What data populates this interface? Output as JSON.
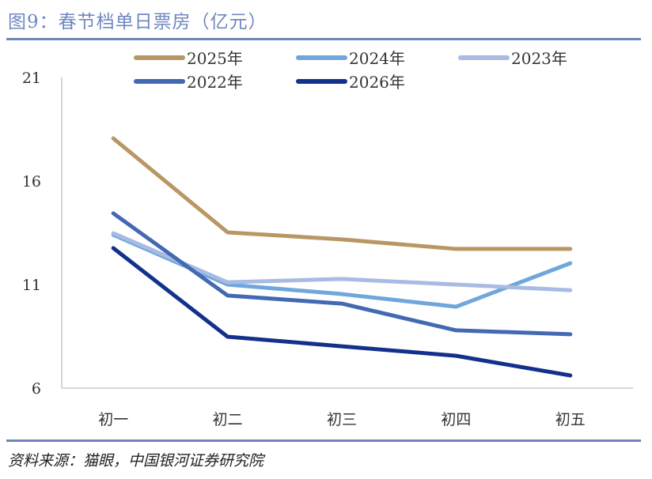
{
  "title": "图9：春节档单日票房（亿元）",
  "source": "资料来源：猫眼，中国银河证券研究院",
  "chart_data": {
    "type": "line",
    "title": "图9：春节档单日票房（亿元）",
    "xlabel": "",
    "ylabel": "",
    "categories": [
      "初一",
      "初二",
      "初三",
      "初四",
      "初五"
    ],
    "yticks": [
      6,
      11,
      16,
      21
    ],
    "ylim": [
      6,
      21
    ],
    "grid": false,
    "legend": "top",
    "series": [
      {
        "name": "2025年",
        "color": "#b99764",
        "values": [
          18.06,
          13.52,
          13.18,
          12.72,
          12.72
        ]
      },
      {
        "name": "2024年",
        "color": "#6fa7dc",
        "values": [
          13.4,
          11.0,
          10.54,
          9.93,
          12.03
        ]
      },
      {
        "name": "2023年",
        "color": "#a8bbe3",
        "values": [
          13.48,
          11.11,
          11.27,
          11.0,
          10.73
        ]
      },
      {
        "name": "2022年",
        "color": "#4369b3",
        "values": [
          14.44,
          10.47,
          10.08,
          8.79,
          8.6
        ]
      },
      {
        "name": "2026年",
        "color": "#13318c",
        "values": [
          12.76,
          8.48,
          8.02,
          7.56,
          6.61
        ]
      }
    ]
  }
}
